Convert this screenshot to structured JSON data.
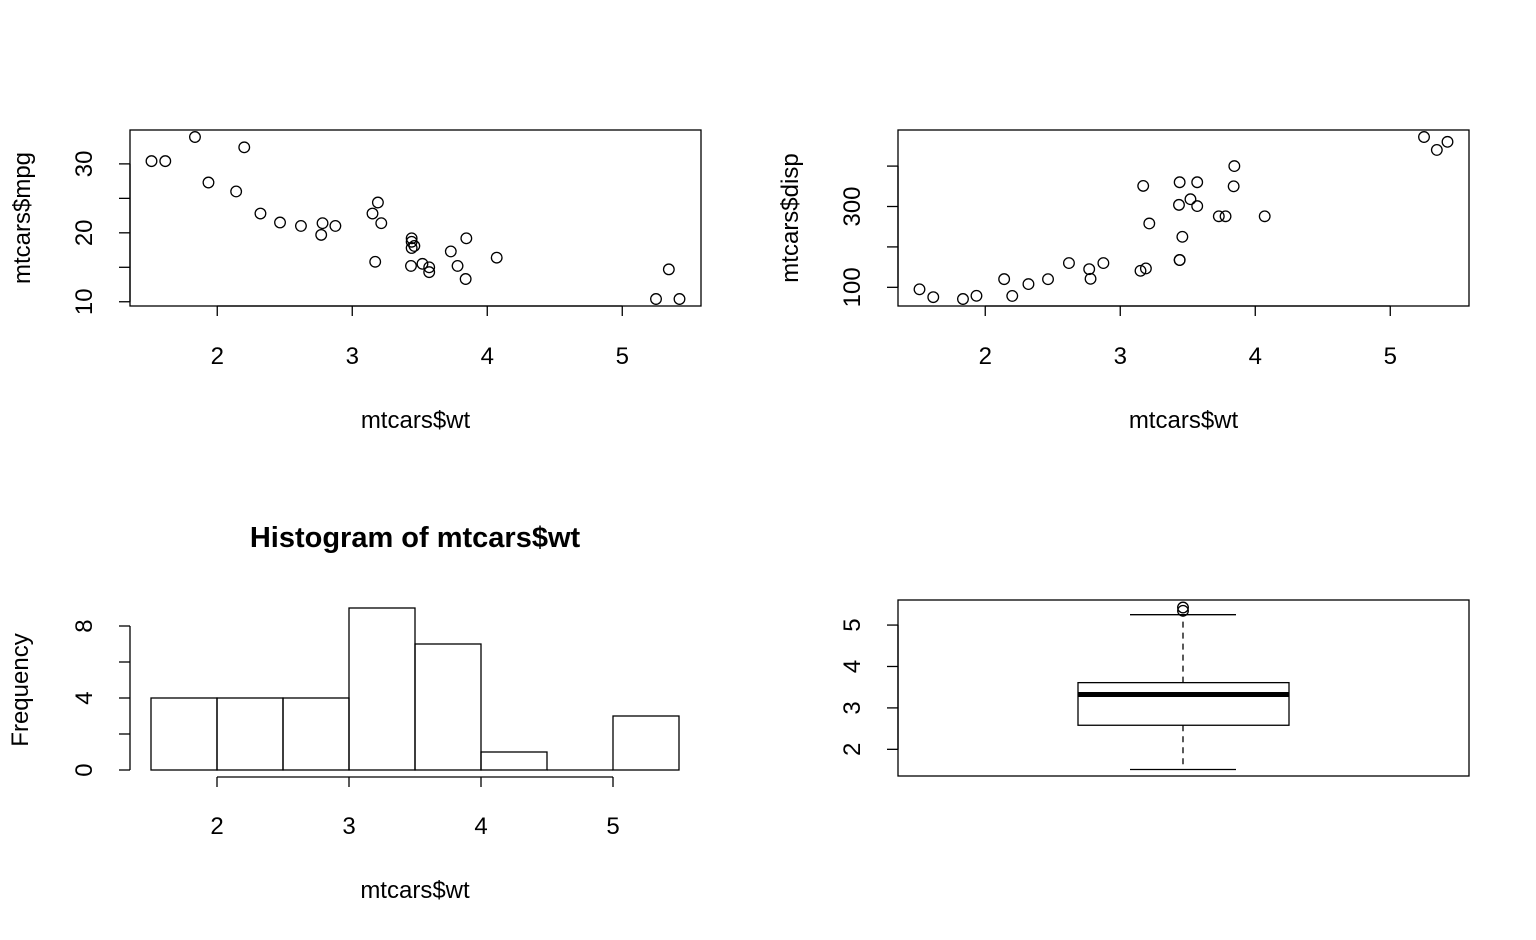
{
  "chart_data": [
    {
      "type": "scatter",
      "title": "",
      "xlabel": "mtcars$wt",
      "ylabel": "mtcars$mpg",
      "xlim": [
        1.513,
        5.424
      ],
      "ylim": [
        10.4,
        33.9
      ],
      "x_ticks": [
        2,
        3,
        4,
        5
      ],
      "y_ticks": [
        10,
        20,
        30
      ],
      "y_minor_ticks": [
        15,
        25
      ],
      "x": [
        2.62,
        2.875,
        2.32,
        3.215,
        3.44,
        3.46,
        3.57,
        3.19,
        3.15,
        3.44,
        3.44,
        4.07,
        3.73,
        3.78,
        5.25,
        5.424,
        5.345,
        2.2,
        1.615,
        1.835,
        2.465,
        3.52,
        3.435,
        3.84,
        3.845,
        1.935,
        2.14,
        1.513,
        3.17,
        2.77,
        3.57,
        2.78
      ],
      "y": [
        21,
        21,
        22.8,
        21.4,
        18.7,
        18.1,
        14.3,
        24.4,
        22.8,
        19.2,
        17.8,
        16.4,
        17.3,
        15.2,
        10.4,
        10.4,
        14.7,
        32.4,
        30.4,
        33.9,
        21.5,
        15.5,
        15.2,
        13.3,
        19.2,
        27.3,
        26,
        30.4,
        15.8,
        19.7,
        15,
        21.4
      ]
    },
    {
      "type": "scatter",
      "title": "",
      "xlabel": "mtcars$wt",
      "ylabel": "mtcars$disp",
      "xlim": [
        1.513,
        5.424
      ],
      "ylim": [
        71.1,
        472
      ],
      "x_ticks": [
        2,
        3,
        4,
        5
      ],
      "y_ticks": [
        100,
        300
      ],
      "y_minor_ticks": [
        200,
        400
      ],
      "x": [
        2.62,
        2.875,
        2.32,
        3.215,
        3.44,
        3.46,
        3.57,
        3.19,
        3.15,
        3.44,
        3.44,
        4.07,
        3.73,
        3.78,
        5.25,
        5.424,
        5.345,
        2.2,
        1.615,
        1.835,
        2.465,
        3.52,
        3.435,
        3.84,
        3.845,
        1.935,
        2.14,
        1.513,
        3.17,
        2.77,
        3.57,
        2.78
      ],
      "y": [
        160,
        160,
        108,
        258,
        360,
        225,
        360,
        146.7,
        140.8,
        167.6,
        167.6,
        275.8,
        275.8,
        275.8,
        472,
        460,
        440,
        78.7,
        75.7,
        71.1,
        120.1,
        318,
        304,
        350,
        400,
        79,
        120.3,
        95.1,
        351,
        145,
        301,
        121
      ]
    },
    {
      "type": "bar",
      "title": "Histogram of mtcars$wt",
      "xlabel": "mtcars$wt",
      "ylabel": "Frequency",
      "bins": [
        [
          1.5,
          2
        ],
        [
          2,
          2.5
        ],
        [
          2.5,
          3
        ],
        [
          3,
          3.5
        ],
        [
          3.5,
          4
        ],
        [
          4,
          4.5
        ],
        [
          4.5,
          5
        ],
        [
          5,
          5.5
        ]
      ],
      "values": [
        4,
        4,
        4,
        9,
        7,
        1,
        0,
        3
      ],
      "x_ticks": [
        2,
        3,
        4,
        5
      ],
      "y_ticks": [
        0,
        4,
        8
      ],
      "y_minor_ticks": [
        2,
        6
      ],
      "ylim": [
        0,
        9
      ]
    },
    {
      "type": "box",
      "title": "",
      "xlabel": "",
      "ylabel": "",
      "ylim": [
        1.513,
        5.424
      ],
      "y_ticks": [
        2,
        3,
        4,
        5
      ],
      "whisker_low": 1.513,
      "q1": 2.58125,
      "median": 3.325,
      "q3": 3.61,
      "whisker_high": 5.25,
      "outliers": [
        5.424,
        5.345
      ]
    }
  ]
}
